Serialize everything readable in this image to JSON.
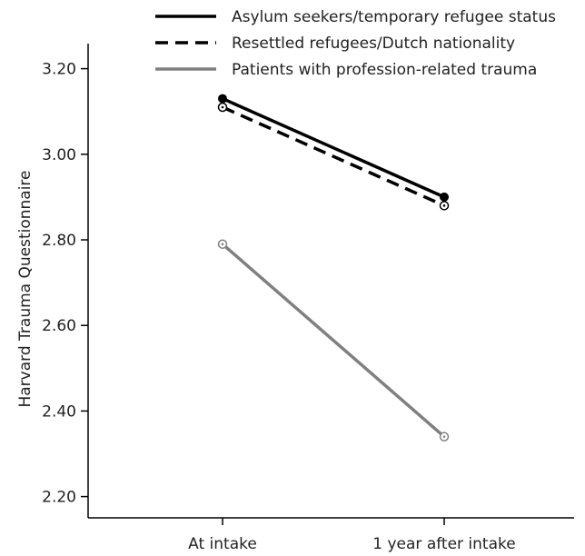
{
  "chart_data": {
    "type": "line",
    "title": "",
    "xlabel": "",
    "ylabel": "Harvard Trauma Questionnaire",
    "categories": [
      "At intake",
      "1 year after intake"
    ],
    "ylim": [
      2.17,
      3.26
    ],
    "yticks": [
      2.2,
      2.4,
      2.6,
      2.8,
      3.0,
      3.2
    ],
    "ytick_labels": [
      "2.20",
      "2.40",
      "2.60",
      "2.80",
      "3.00",
      "3.20"
    ],
    "grid": false,
    "legend_position": "top-right",
    "series": [
      {
        "name": "Asylum seekers/temporary refugee status",
        "values": [
          3.13,
          2.9
        ],
        "color": "#000000",
        "line_style": "solid",
        "marker": "filled-circle"
      },
      {
        "name": "Resettled refugees/Dutch nationality",
        "values": [
          3.11,
          2.88
        ],
        "color": "#000000",
        "line_style": "dashed",
        "marker": "open-circle"
      },
      {
        "name": "Patients with profession-related trauma",
        "values": [
          2.79,
          2.34
        ],
        "color": "#808080",
        "line_style": "solid",
        "marker": "open-circle"
      }
    ]
  }
}
